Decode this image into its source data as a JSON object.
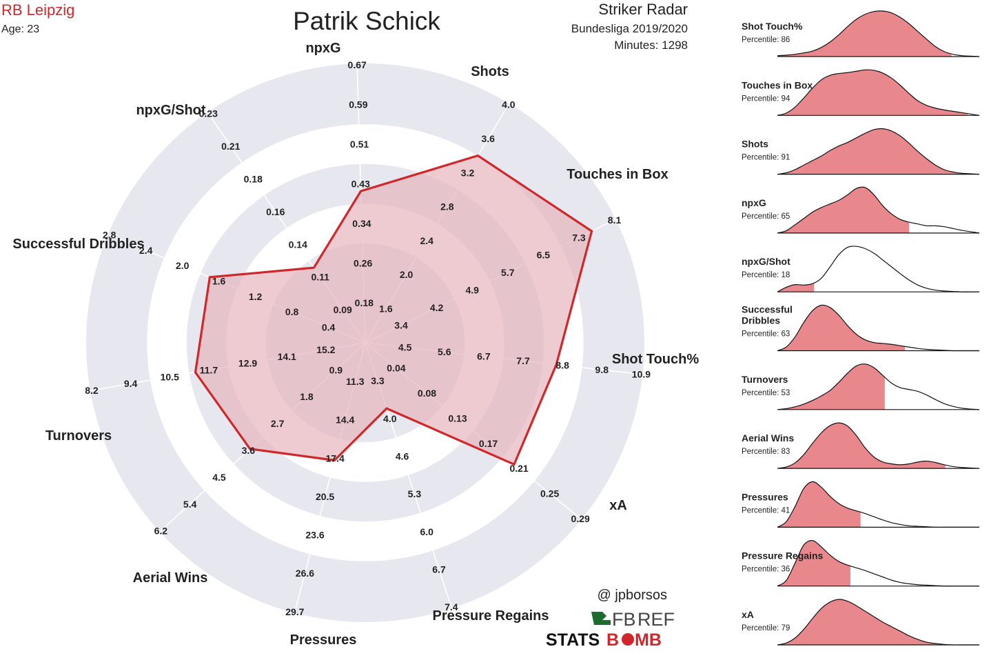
{
  "header": {
    "team": "RB Leipzig",
    "age_label": "Age: 23",
    "player": "Patrik Schick",
    "chart_kind": "Striker Radar",
    "league": "Bundesliga 2019/2020",
    "minutes": "Minutes: 1298"
  },
  "credits": {
    "handle": "@ jpborsos",
    "fbref_a": "FB",
    "fbref_b": "REF",
    "statsbomb_a": "STATS",
    "statsbomb_b": "B",
    "statsbomb_c": "MB"
  },
  "colors": {
    "accent": "#d0282a",
    "radar_fill": "#e6b5bd",
    "ring_bg": "#e7e8ef",
    "dist_fill": "#e8888c",
    "team_text": "#d0282a",
    "text": "#222222"
  },
  "chart_data": [
    {
      "type": "radar",
      "title": "Patrik Schick",
      "axes": [
        {
          "name": "Shot Touch%",
          "value": 8.6,
          "min": 4.5,
          "max": 10.9,
          "ticks": [
            "4.5",
            "5.6",
            "6.7",
            "7.7",
            "8.8",
            "9.8",
            "10.9"
          ]
        },
        {
          "name": "xA",
          "value": 0.2,
          "min": 0.04,
          "max": 0.29,
          "ticks": [
            "0.04",
            "0.08",
            "0.13",
            "0.17",
            "0.21",
            "0.25",
            "0.29"
          ]
        },
        {
          "name": "Pressure Regains",
          "value": 3.8,
          "min": 3.3,
          "max": 7.4,
          "ticks": [
            "3.3",
            "4.0",
            "4.6",
            "5.3",
            "6.0",
            "6.7",
            "7.4"
          ]
        },
        {
          "name": "Pressures",
          "value": 17.6,
          "min": 11.3,
          "max": 29.7,
          "ticks": [
            "11.3",
            "14.4",
            "17.4",
            "20.5",
            "23.6",
            "26.6",
            "29.7"
          ]
        },
        {
          "name": "Aerial Wins",
          "value": 3.5,
          "min": 0.9,
          "max": 6.2,
          "ticks": [
            "0.9",
            "1.8",
            "2.7",
            "3.6",
            "4.5",
            "5.4",
            "6.2"
          ]
        },
        {
          "name": "Turnovers",
          "value": 11.3,
          "min": 15.2,
          "max": 8.2,
          "ticks": [
            "15.2",
            "14.1",
            "12.9",
            "11.7",
            "10.5",
            "9.4",
            "8.2"
          ]
        },
        {
          "name": "Successful Dribbles",
          "value": 1.7,
          "min": 0.4,
          "max": 2.8,
          "ticks": [
            "0.4",
            "0.8",
            "1.2",
            "1.6",
            "2.0",
            "2.4",
            "2.8"
          ]
        },
        {
          "name": "npxG/Shot",
          "value": 0.12,
          "min": 0.09,
          "max": 0.23,
          "ticks": [
            "0.09",
            "0.11",
            "0.14",
            "0.16",
            "0.18",
            "0.21",
            "0.23"
          ]
        },
        {
          "name": "npxG",
          "value": 0.41,
          "min": 0.18,
          "max": 0.67,
          "ticks": [
            "0.18",
            "0.26",
            "0.34",
            "0.43",
            "0.51",
            "0.59",
            "0.67"
          ]
        },
        {
          "name": "Shots",
          "value": 3.4,
          "min": 1.6,
          "max": 4.0,
          "ticks": [
            "1.6",
            "2.0",
            "2.4",
            "2.8",
            "3.2",
            "3.6",
            "4.0"
          ]
        },
        {
          "name": "Touches in Box",
          "value": 7.6,
          "min": 3.4,
          "max": 8.1,
          "ticks": [
            "3.4",
            "4.2",
            "4.9",
            "5.7",
            "6.5",
            "7.3",
            "8.1"
          ]
        }
      ]
    },
    {
      "type": "area",
      "title": "Percentile distributions",
      "series": [
        {
          "name": "Shot Touch%",
          "percentile_label": "Percentile: 86",
          "percentile": 86,
          "curve": [
            0.02,
            0.03,
            0.05,
            0.08,
            0.12,
            0.2,
            0.32,
            0.48,
            0.66,
            0.82,
            0.93,
            0.99,
            1.0,
            0.96,
            0.86,
            0.72,
            0.55,
            0.38,
            0.22,
            0.11,
            0.05,
            0.02,
            0.01,
            0.0
          ]
        },
        {
          "name": "Touches in Box",
          "percentile_label": "Percentile: 94",
          "percentile": 94,
          "curve": [
            0.0,
            0.05,
            0.18,
            0.38,
            0.6,
            0.78,
            0.88,
            0.92,
            0.94,
            0.97,
            1.0,
            0.99,
            0.93,
            0.82,
            0.66,
            0.48,
            0.32,
            0.22,
            0.16,
            0.12,
            0.09,
            0.06,
            0.03,
            0.0
          ]
        },
        {
          "name": "Shots",
          "percentile_label": "Percentile: 91",
          "percentile": 91,
          "curve": [
            0.0,
            0.03,
            0.1,
            0.2,
            0.3,
            0.4,
            0.52,
            0.62,
            0.7,
            0.8,
            0.9,
            0.98,
            1.0,
            0.95,
            0.84,
            0.68,
            0.5,
            0.34,
            0.2,
            0.1,
            0.05,
            0.02,
            0.01,
            0.0
          ]
        },
        {
          "name": "npxG",
          "percentile_label": "Percentile: 65",
          "percentile": 65,
          "curve": [
            0.0,
            0.05,
            0.18,
            0.32,
            0.46,
            0.56,
            0.64,
            0.72,
            0.84,
            0.98,
            1.0,
            0.84,
            0.6,
            0.42,
            0.3,
            0.24,
            0.2,
            0.16,
            0.16,
            0.14,
            0.1,
            0.06,
            0.03,
            0.0
          ]
        },
        {
          "name": "npxG/Shot",
          "percentile_label": "Percentile: 18",
          "percentile": 18,
          "curve": [
            0.0,
            0.1,
            0.16,
            0.15,
            0.18,
            0.3,
            0.55,
            0.82,
            0.98,
            1.0,
            0.95,
            0.85,
            0.7,
            0.55,
            0.4,
            0.26,
            0.15,
            0.08,
            0.04,
            0.02,
            0.01,
            0.0,
            0.0,
            0.0
          ]
        },
        {
          "name": "Successful Dribbles",
          "percentile_label": "Percentile: 63",
          "percentile": 63,
          "curve": [
            0.0,
            0.08,
            0.3,
            0.62,
            0.88,
            1.0,
            0.95,
            0.78,
            0.55,
            0.36,
            0.24,
            0.18,
            0.16,
            0.14,
            0.11,
            0.08,
            0.05,
            0.03,
            0.02,
            0.01,
            0.0,
            0.0,
            0.0,
            0.0
          ]
        },
        {
          "name": "Turnovers",
          "percentile_label": "Percentile: 53",
          "percentile": 53,
          "curve": [
            0.0,
            0.02,
            0.06,
            0.12,
            0.2,
            0.3,
            0.42,
            0.6,
            0.8,
            0.96,
            1.0,
            0.92,
            0.75,
            0.58,
            0.48,
            0.44,
            0.4,
            0.32,
            0.22,
            0.13,
            0.07,
            0.03,
            0.01,
            0.0
          ]
        },
        {
          "name": "Aerial Wins",
          "percentile_label": "Percentile: 83",
          "percentile": 83,
          "curve": [
            0.0,
            0.03,
            0.12,
            0.3,
            0.55,
            0.78,
            0.94,
            1.0,
            0.93,
            0.72,
            0.45,
            0.25,
            0.14,
            0.1,
            0.08,
            0.1,
            0.14,
            0.16,
            0.13,
            0.08,
            0.04,
            0.02,
            0.01,
            0.0
          ]
        },
        {
          "name": "Pressures",
          "percentile_label": "Percentile: 41",
          "percentile": 41,
          "curve": [
            0.0,
            0.12,
            0.45,
            0.85,
            1.0,
            0.88,
            0.68,
            0.52,
            0.42,
            0.36,
            0.3,
            0.23,
            0.16,
            0.1,
            0.06,
            0.03,
            0.02,
            0.01,
            0.0,
            0.0,
            0.0,
            0.0,
            0.0,
            0.0
          ]
        },
        {
          "name": "Pressure Regains",
          "percentile_label": "Percentile: 36",
          "percentile": 36,
          "curve": [
            0.0,
            0.12,
            0.5,
            0.9,
            1.0,
            0.86,
            0.68,
            0.54,
            0.46,
            0.4,
            0.34,
            0.27,
            0.2,
            0.13,
            0.08,
            0.05,
            0.03,
            0.02,
            0.01,
            0.0,
            0.0,
            0.0,
            0.0,
            0.0
          ]
        },
        {
          "name": "xA",
          "percentile_label": "Percentile: 79",
          "percentile": 79,
          "curve": [
            0.0,
            0.04,
            0.15,
            0.34,
            0.58,
            0.8,
            0.94,
            1.0,
            0.96,
            0.86,
            0.74,
            0.62,
            0.5,
            0.4,
            0.3,
            0.2,
            0.12,
            0.06,
            0.03,
            0.01,
            0.0,
            0.0,
            0.0,
            0.0
          ]
        }
      ]
    }
  ]
}
